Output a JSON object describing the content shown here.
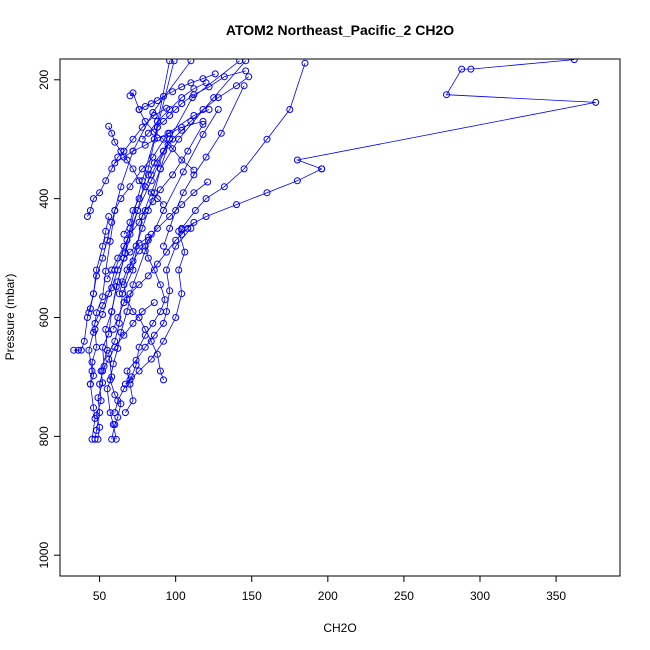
{
  "chart_data": {
    "type": "scatter",
    "title": "ATOM2 Northeast_Pacific_2 CH2O",
    "xlabel": "CH2O",
    "ylabel": "Pressure (mbar)",
    "xlim": [
      24,
      392
    ],
    "ylim": [
      1035,
      165
    ],
    "y_reversed": true,
    "x_ticks": [
      50,
      100,
      150,
      200,
      250,
      300,
      350
    ],
    "y_ticks": [
      200,
      400,
      600,
      800,
      1000
    ],
    "grid": false,
    "marker": "open-circle",
    "line_color": "#0000ff",
    "series": [
      {
        "x": [
          61,
          59,
          57,
          55,
          58,
          56,
          60,
          63,
          65,
          72,
          78,
          90,
          102,
          125,
          146
        ],
        "y": [
          805,
          780,
          760,
          720,
          700,
          660,
          640,
          610,
          560,
          520,
          430,
          350,
          300,
          230,
          168
        ]
      },
      {
        "x": [
          47,
          48,
          50,
          49,
          52,
          51,
          55,
          54,
          58,
          62,
          66,
          70,
          78,
          86,
          96
        ],
        "y": [
          805,
          790,
          760,
          735,
          710,
          690,
          655,
          620,
          590,
          540,
          500,
          450,
          370,
          300,
          168
        ]
      },
      {
        "x": [
          49,
          50,
          48,
          51,
          50,
          53,
          52,
          56,
          58,
          61,
          67,
          75,
          82,
          88,
          99
        ],
        "y": [
          805,
          785,
          765,
          740,
          712,
          682,
          650,
          628,
          590,
          548,
          492,
          420,
          350,
          280,
          168
        ]
      },
      {
        "x": [
          58,
          60,
          62,
          64,
          60,
          57,
          59,
          62,
          64,
          68,
          72,
          80,
          92,
          105,
          118,
          128
        ],
        "y": [
          805,
          780,
          768,
          745,
          730,
          705,
          678,
          652,
          625,
          590,
          545,
          488,
          420,
          355,
          292,
          250
        ]
      },
      {
        "x": [
          45,
          47,
          46,
          44,
          45,
          43,
          46,
          48,
          52,
          54,
          57,
          60,
          64,
          72,
          85,
          110
        ],
        "y": [
          805,
          770,
          752,
          712,
          690,
          655,
          625,
          592,
          565,
          522,
          472,
          420,
          380,
          320,
          255,
          168
        ]
      },
      {
        "x": [
          44,
          46,
          45,
          48,
          47,
          52,
          56,
          60,
          68,
          75,
          84,
          96,
          111,
          142
        ],
        "y": [
          712,
          698,
          675,
          650,
          620,
          595,
          560,
          520,
          470,
          420,
          370,
          300,
          230,
          168
        ]
      },
      {
        "x": [
          33,
          36,
          38,
          40,
          42,
          46,
          48,
          52,
          54,
          56
        ],
        "y": [
          655,
          655,
          655,
          640,
          600,
          560,
          520,
          480,
          455,
          430
        ]
      },
      {
        "x": [
          60,
          62,
          66,
          70,
          76,
          84,
          92,
          100,
          104,
          102,
          106,
          102
        ],
        "y": [
          760,
          740,
          720,
          705,
          690,
          670,
          640,
          600,
          560,
          520,
          490,
          455
        ]
      },
      {
        "x": [
          67,
          72,
          70,
          68,
          74,
          80,
          86,
          92,
          94,
          96,
          94,
          100,
          110
        ],
        "y": [
          760,
          740,
          712,
          690,
          672,
          650,
          630,
          610,
          590,
          555,
          520,
          480,
          450
        ]
      },
      {
        "x": [
          67,
          71,
          74,
          76,
          80,
          85,
          90,
          93,
          90,
          86,
          82,
          80,
          84
        ],
        "y": [
          712,
          700,
          680,
          650,
          630,
          610,
          590,
          570,
          545,
          520,
          500,
          480,
          460
        ]
      },
      {
        "x": [
          92,
          90,
          88,
          84,
          80,
          76,
          72,
          68,
          66,
          70,
          74,
          78,
          82,
          86,
          90,
          95
        ],
        "y": [
          705,
          690,
          662,
          640,
          620,
          600,
          590,
          570,
          545,
          515,
          480,
          450,
          420,
          390,
          350,
          310
        ]
      },
      {
        "x": [
          43,
          44,
          46,
          48,
          52,
          55,
          58,
          60,
          64,
          70,
          78,
          85,
          95,
          112,
          122
        ],
        "y": [
          592,
          585,
          560,
          530,
          500,
          470,
          440,
          420,
          400,
          380,
          350,
          330,
          290,
          260,
          250
        ]
      },
      {
        "x": [
          63,
          65,
          68,
          72,
          76,
          82,
          88,
          96,
          104,
          112,
          121
        ],
        "y": [
          560,
          540,
          520,
          505,
          488,
          470,
          450,
          430,
          410,
          390,
          372
        ]
      },
      {
        "x": [
          59,
          62,
          66,
          70,
          76,
          82,
          88,
          94,
          100,
          104,
          108,
          112
        ],
        "y": [
          620,
          600,
          575,
          560,
          545,
          530,
          510,
          490,
          470,
          460,
          450,
          440
        ]
      },
      {
        "x": [
          55,
          58,
          62,
          66,
          70,
          76,
          80,
          85,
          90,
          98,
          108,
          118
        ],
        "y": [
          535,
          520,
          500,
          480,
          460,
          440,
          420,
          405,
          385,
          360,
          320,
          275
        ]
      },
      {
        "x": [
          42,
          44,
          46,
          50,
          54,
          58,
          62,
          66,
          72,
          78,
          86,
          94
        ],
        "y": [
          430,
          420,
          400,
          390,
          370,
          350,
          330,
          320,
          300,
          280,
          260,
          248
        ]
      },
      {
        "x": [
          56,
          58,
          60,
          64,
          68,
          72,
          76,
          80,
          84,
          88,
          92
        ],
        "y": [
          278,
          290,
          305,
          320,
          335,
          350,
          370,
          380,
          390,
          400,
          410
        ]
      },
      {
        "x": [
          66,
          70,
          72,
          76,
          80,
          84,
          88,
          92,
          96
        ],
        "y": [
          460,
          440,
          420,
          400,
          380,
          360,
          340,
          320,
          300
        ]
      },
      {
        "x": [
          70,
          72,
          76,
          80,
          86,
          92,
          98,
          104,
          112
        ],
        "y": [
          227,
          222,
          250,
          270,
          288,
          300,
          316,
          335,
          352
        ]
      },
      {
        "x": [
          76,
          80,
          84,
          88,
          92,
          98,
          104,
          110,
          118,
          126
        ],
        "y": [
          250,
          245,
          240,
          235,
          228,
          220,
          212,
          205,
          198,
          190
        ]
      },
      {
        "x": [
          82,
          86,
          92,
          98,
          104,
          110,
          118,
          128,
          140,
          148
        ],
        "y": [
          360,
          340,
          320,
          300,
          285,
          270,
          250,
          230,
          210,
          195
        ]
      },
      {
        "x": [
          60,
          66,
          72,
          80,
          88,
          96,
          104,
          118
        ],
        "y": [
          340,
          330,
          320,
          310,
          298,
          290,
          280,
          270
        ]
      },
      {
        "x": [
          92,
          96,
          100,
          105,
          112,
          120,
          130,
          145
        ],
        "y": [
          480,
          450,
          420,
          390,
          360,
          330,
          290,
          210
        ]
      },
      {
        "x": [
          52,
          56,
          60,
          66,
          72,
          78,
          86
        ],
        "y": [
          690,
          670,
          650,
          630,
          610,
          590,
          575
        ]
      },
      {
        "x": [
          47,
          52,
          58,
          62,
          66,
          70,
          76,
          82
        ],
        "y": [
          610,
          580,
          550,
          520,
          500,
          490,
          475,
          465
        ]
      },
      {
        "x": [
          88,
          92,
          96,
          100,
          104,
          112,
          122,
          132,
          146
        ],
        "y": [
          280,
          270,
          260,
          250,
          240,
          225,
          212,
          195,
          185
        ]
      },
      {
        "x": [
          120,
          112,
          104,
          96,
          88,
          82,
          78
        ],
        "y": [
          205,
          215,
          230,
          250,
          270,
          290,
          300
        ]
      },
      {
        "x": [
          104,
          113,
          120,
          132,
          145,
          160,
          175,
          185
        ],
        "y": [
          450,
          420,
          400,
          380,
          350,
          300,
          250,
          172
        ]
      },
      {
        "x": [
          104,
          120,
          140,
          160,
          180,
          196
        ],
        "y": [
          452,
          430,
          410,
          390,
          370,
          350
        ]
      },
      {
        "x": [
          196,
          180,
          376,
          278,
          288,
          294,
          362
        ],
        "y": [
          350,
          335,
          238,
          225,
          182,
          182,
          166
        ]
      }
    ]
  }
}
